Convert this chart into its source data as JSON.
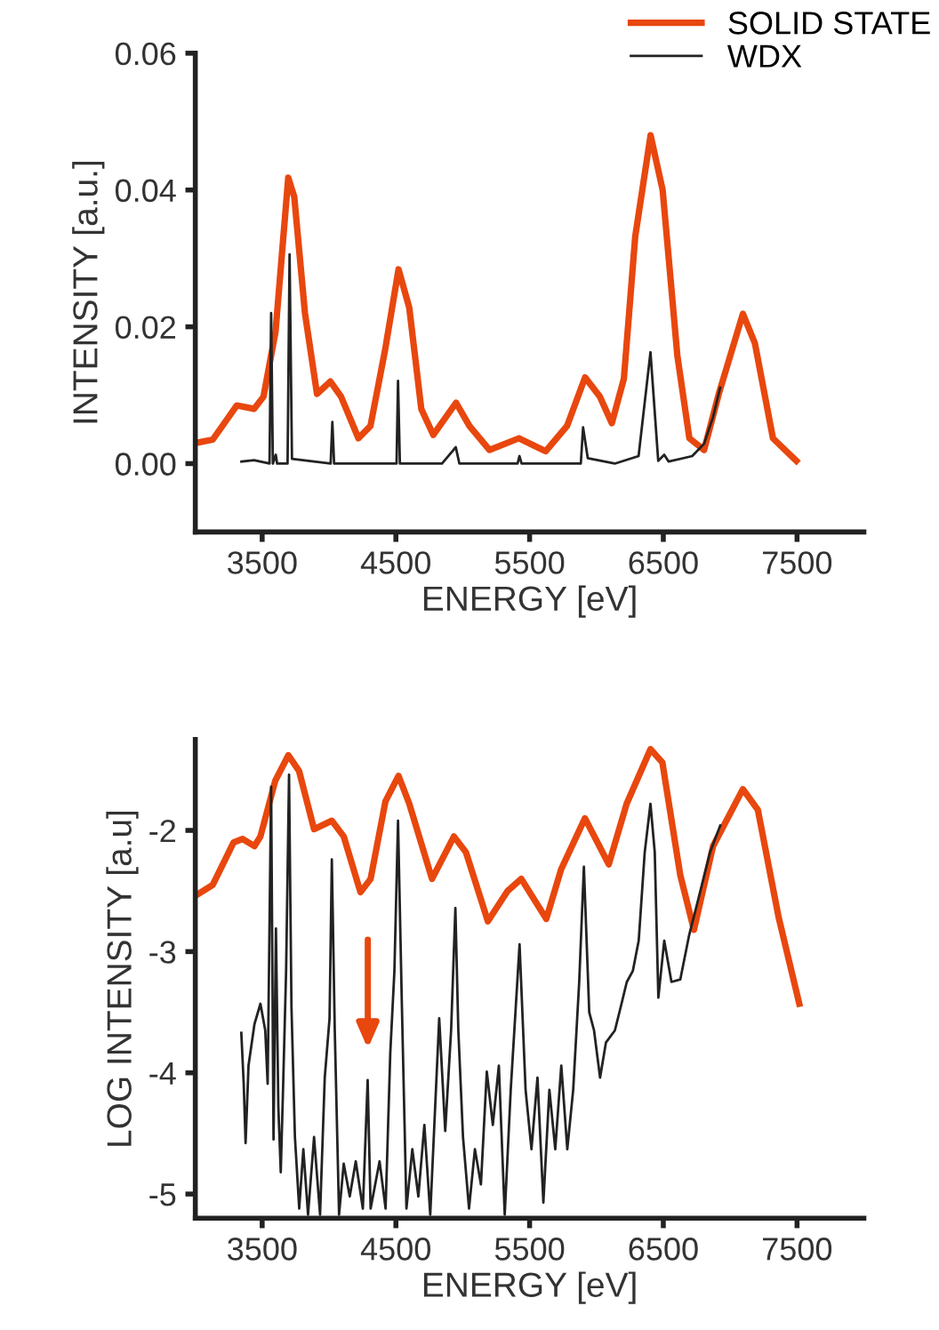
{
  "chart_data": [
    {
      "type": "line",
      "xlabel": "ENERGY [eV]",
      "ylabel": "INTENSITY [a.u.]",
      "xlim": [
        3000,
        8000
      ],
      "ylim": [
        -0.01,
        0.06
      ],
      "xticks": [
        3500,
        4500,
        5500,
        6500,
        7500
      ],
      "yticks": [
        {
          "value": 0,
          "label": "0.00"
        },
        {
          "value": 0.02,
          "label": "0.02"
        },
        {
          "value": 0.04,
          "label": "0.04"
        },
        {
          "value": 0.06,
          "label": "0.06"
        }
      ],
      "legend": "top right",
      "series": [
        {
          "name": "SOLID STATE",
          "color": "#e8470e",
          "x": [
            3000,
            3130,
            3310,
            3440,
            3510,
            3600,
            3695,
            3740,
            3820,
            3910,
            4010,
            4090,
            4220,
            4310,
            4420,
            4520,
            4600,
            4690,
            4780,
            4950,
            5050,
            5200,
            5420,
            5620,
            5780,
            5915,
            6025,
            6115,
            6205,
            6290,
            6405,
            6495,
            6605,
            6695,
            6805,
            6915,
            7095,
            7185,
            7320,
            7495
          ],
          "values": [
            0.003,
            0.0035,
            0.0085,
            0.008,
            0.0098,
            0.0193,
            0.0418,
            0.039,
            0.022,
            0.0102,
            0.012,
            0.0098,
            0.0037,
            0.0055,
            0.0167,
            0.0284,
            0.0228,
            0.008,
            0.0042,
            0.0089,
            0.0055,
            0.002,
            0.0037,
            0.0018,
            0.0055,
            0.0126,
            0.0098,
            0.0059,
            0.0124,
            0.0332,
            0.048,
            0.04,
            0.0158,
            0.0037,
            0.002,
            0.0102,
            0.0219,
            0.0176,
            0.0037,
            0.0004
          ]
        },
        {
          "name": "WDX",
          "color": "#222222",
          "x": [
            3345,
            3440,
            3555,
            3567,
            3580,
            3602,
            3612,
            3690,
            3705,
            3723,
            4012,
            4025,
            4038,
            4505,
            4516,
            4530,
            4845,
            4948,
            4975,
            5410,
            5424,
            5440,
            5883,
            5900,
            5935,
            6137,
            6315,
            6404,
            6462,
            6507,
            6540,
            6716,
            6805,
            6872,
            6925
          ],
          "values": [
            0.0003,
            0.0005,
            0,
            0.022,
            0,
            0.0013,
            0,
            0,
            0.0306,
            0.0007,
            0,
            0.0061,
            0,
            0,
            0.0121,
            0,
            0,
            0.0024,
            0,
            0,
            0.0011,
            0,
            0,
            0.0053,
            0.0008,
            0,
            0.0011,
            0.0163,
            0.0004,
            0.0013,
            0.0003,
            0.0011,
            0.0029,
            0.0068,
            0.0111
          ]
        }
      ]
    },
    {
      "type": "line",
      "xlabel": "ENERGY [eV]",
      "ylabel": "LOG INTENSITY [a.u]",
      "xlim": [
        3000,
        8000
      ],
      "ylim": [
        -5.2,
        -1.25
      ],
      "xticks": [
        3500,
        4500,
        5500,
        6500,
        7500
      ],
      "yticks": [
        {
          "value": -5,
          "label": "-5"
        },
        {
          "value": -4,
          "label": "-4"
        },
        {
          "value": -3,
          "label": "-3"
        },
        {
          "value": -2,
          "label": "-2"
        }
      ],
      "series": [
        {
          "color": "#e8470e",
          "x": [
            3000,
            3130,
            3286,
            3353,
            3442,
            3487,
            3598,
            3696,
            3776,
            3888,
            4021,
            4110,
            4235,
            4311,
            4422,
            4520,
            4600,
            4770,
            4934,
            5024,
            5188,
            5335,
            5438,
            5625,
            5736,
            5914,
            6092,
            6226,
            6404,
            6493,
            6627,
            6729,
            6872,
            7095,
            7207,
            7363,
            7517
          ],
          "values": [
            -2.54,
            -2.45,
            -2.1,
            -2.07,
            -2.13,
            -2.05,
            -1.59,
            -1.38,
            -1.51,
            -1.99,
            -1.92,
            -2.05,
            -2.51,
            -2.4,
            -1.76,
            -1.55,
            -1.78,
            -2.4,
            -2.05,
            -2.18,
            -2.75,
            -2.5,
            -2.4,
            -2.73,
            -2.32,
            -1.9,
            -2.28,
            -1.78,
            -1.33,
            -1.44,
            -2.37,
            -2.82,
            -2.13,
            -1.66,
            -1.83,
            -2.72,
            -3.43
          ]
        },
        {
          "color": "#222222",
          "x": [
            3344,
            3362,
            3376,
            3398,
            3442,
            3487,
            3523,
            3541,
            3567,
            3585,
            3603,
            3621,
            3639,
            3656,
            3679,
            3701,
            3719,
            3745,
            3777,
            3808,
            3843,
            3888,
            3933,
            3968,
            4004,
            4021,
            4043,
            4075,
            4110,
            4155,
            4200,
            4253,
            4289,
            4311,
            4378,
            4423,
            4458,
            4489,
            4516,
            4543,
            4579,
            4623,
            4668,
            4713,
            4757,
            4824,
            4869,
            4913,
            4945,
            4967,
            5002,
            5047,
            5091,
            5136,
            5180,
            5225,
            5270,
            5314,
            5359,
            5425,
            5470,
            5514,
            5559,
            5603,
            5648,
            5692,
            5737,
            5782,
            5826,
            5871,
            5906,
            5946,
            5982,
            6027,
            6071,
            6138,
            6183,
            6227,
            6272,
            6316,
            6361,
            6404,
            6436,
            6463,
            6507,
            6561,
            6627,
            6694,
            6761,
            6850,
            6926
          ],
          "values": [
            -3.67,
            -4.09,
            -4.58,
            -3.94,
            -3.6,
            -3.43,
            -3.65,
            -4.09,
            -1.64,
            -4.55,
            -2.81,
            -4.28,
            -4.82,
            -4.14,
            -3.16,
            -1.54,
            -3.45,
            -4.53,
            -5.12,
            -4.63,
            -5.17,
            -4.53,
            -5.17,
            -4.04,
            -3.55,
            -2.24,
            -3.65,
            -5.17,
            -4.75,
            -5.02,
            -4.73,
            -5.12,
            -4.06,
            -5.12,
            -4.73,
            -5.12,
            -3.84,
            -3.16,
            -1.92,
            -3.35,
            -5.12,
            -4.63,
            -5.02,
            -4.43,
            -5.17,
            -3.55,
            -4.48,
            -3.65,
            -2.64,
            -3.65,
            -4.53,
            -5.12,
            -4.63,
            -4.92,
            -3.99,
            -4.43,
            -3.94,
            -5.17,
            -4.14,
            -2.94,
            -4.14,
            -4.63,
            -4.04,
            -5.07,
            -4.14,
            -4.63,
            -3.94,
            -4.63,
            -4.14,
            -3.25,
            -2.3,
            -3.5,
            -3.65,
            -4.04,
            -3.75,
            -3.65,
            -3.45,
            -3.25,
            -3.16,
            -2.91,
            -2.18,
            -1.78,
            -2.18,
            -3.38,
            -2.91,
            -3.25,
            -3.23,
            -2.86,
            -2.57,
            -2.18,
            -1.96
          ]
        }
      ]
    }
  ]
}
